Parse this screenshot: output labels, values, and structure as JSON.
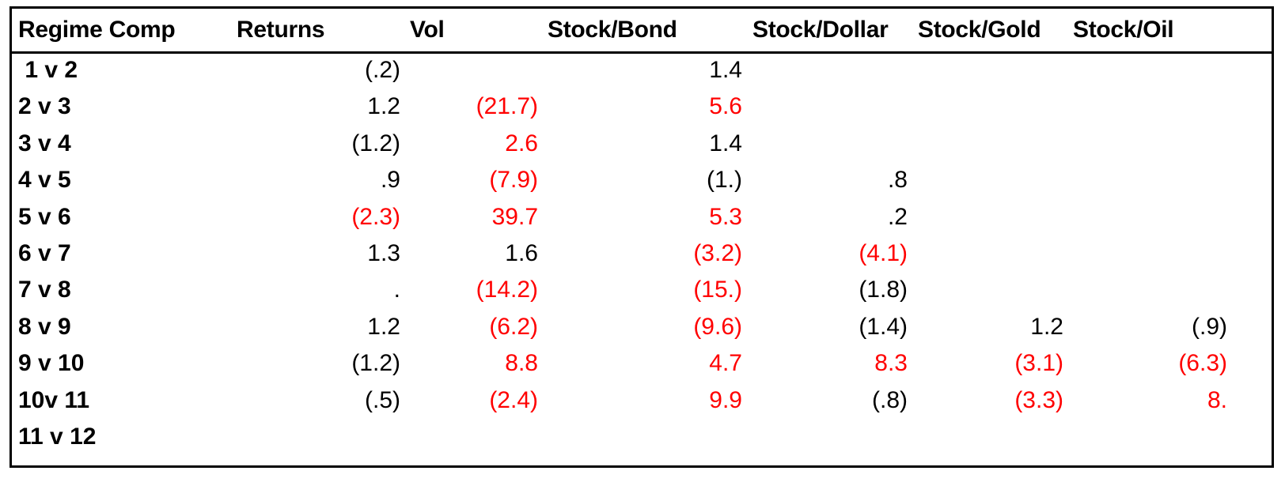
{
  "table": {
    "headers": [
      "Regime Comp",
      "Returns",
      "Vol",
      "Stock/Bond",
      "Stock/Dollar",
      "Stock/Gold",
      "Stock/Oil"
    ],
    "rows": [
      {
        "label": " 1 v 2",
        "values": [
          "(.2)",
          "",
          "1.4",
          "",
          "",
          ""
        ],
        "neg": [
          false,
          false,
          false,
          false,
          false,
          false
        ]
      },
      {
        "label": "2 v 3",
        "values": [
          "1.2",
          "(21.7)",
          "5.6",
          "",
          "",
          ""
        ],
        "neg": [
          false,
          true,
          true,
          false,
          false,
          false
        ]
      },
      {
        "label": "3 v 4",
        "values": [
          "(1.2)",
          "2.6",
          "1.4",
          "",
          "",
          ""
        ],
        "neg": [
          false,
          true,
          false,
          false,
          false,
          false
        ]
      },
      {
        "label": "4 v 5",
        "values": [
          ".9",
          "(7.9)",
          "(1.)",
          ".8",
          "",
          ""
        ],
        "neg": [
          false,
          true,
          false,
          false,
          false,
          false
        ]
      },
      {
        "label": "5 v 6",
        "values": [
          "(2.3)",
          "39.7",
          "5.3",
          ".2",
          "",
          ""
        ],
        "neg": [
          true,
          true,
          true,
          false,
          false,
          false
        ]
      },
      {
        "label": "6 v 7",
        "values": [
          "1.3",
          "1.6",
          "(3.2)",
          "(4.1)",
          "",
          ""
        ],
        "neg": [
          false,
          false,
          true,
          true,
          false,
          false
        ]
      },
      {
        "label": "7 v 8",
        "values": [
          ".",
          "(14.2)",
          "(15.)",
          "(1.8)",
          "",
          ""
        ],
        "neg": [
          false,
          true,
          true,
          false,
          false,
          false
        ]
      },
      {
        "label": "8 v 9",
        "values": [
          "1.2",
          "(6.2)",
          "(9.6)",
          "(1.4)",
          "1.2",
          "(.9)"
        ],
        "neg": [
          false,
          true,
          true,
          false,
          false,
          false
        ]
      },
      {
        "label": "9 v 10",
        "values": [
          "(1.2)",
          "8.8",
          "4.7",
          "8.3",
          "(3.1)",
          "(6.3)"
        ],
        "neg": [
          false,
          true,
          true,
          true,
          true,
          true
        ]
      },
      {
        "label": "10v 11",
        "values": [
          "(.5)",
          "(2.4)",
          "9.9",
          "(.8)",
          "(3.3)",
          "8."
        ],
        "neg": [
          false,
          true,
          true,
          false,
          true,
          true
        ]
      },
      {
        "label": "11 v 12",
        "values": [
          "",
          "",
          "",
          "",
          "",
          ""
        ],
        "neg": [
          false,
          false,
          false,
          false,
          false,
          false
        ]
      }
    ]
  },
  "colors": {
    "highlight": "#ff0000",
    "text": "#000000",
    "border": "#000000"
  }
}
